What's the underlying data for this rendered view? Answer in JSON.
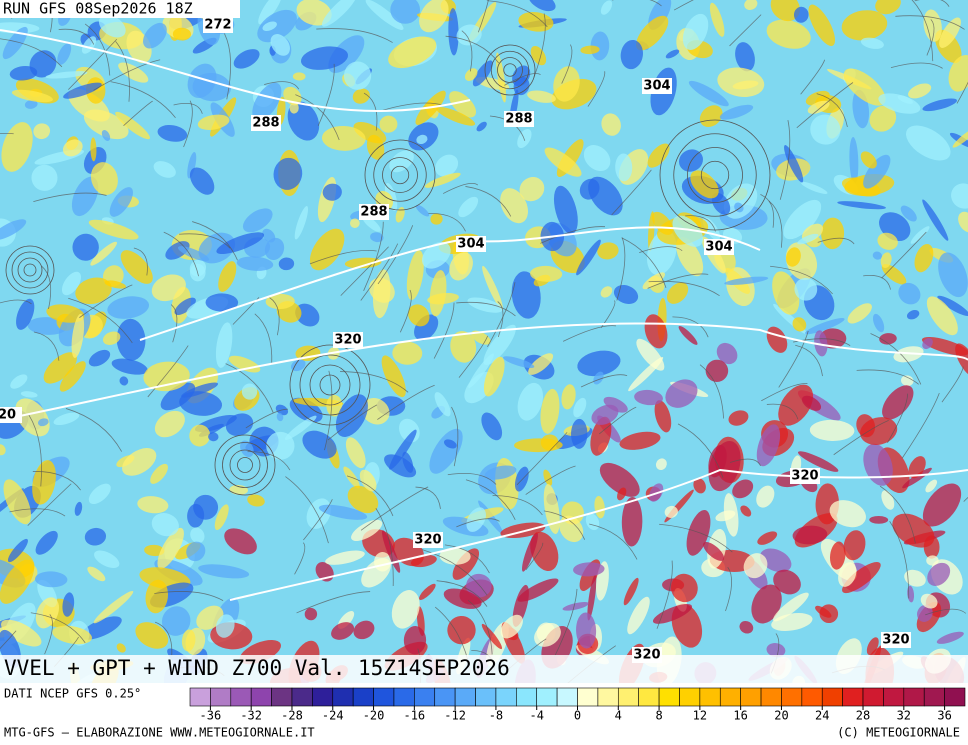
{
  "header": {
    "run": "RUN GFS 08Sep2026 18Z",
    "title": "VVEL + GPT + WIND Z700 Val. 15Z14SEP2026",
    "source": "DATI NCEP GFS 0.25°",
    "credit": "MTG-GFS — ELABORAZIONE WWW.METEOGIORNALE.IT",
    "copyright": "(C) METEOGIORNALE"
  },
  "contour_labels": [
    "272",
    "288",
    "288",
    "288",
    "304",
    "304",
    "304",
    "320",
    "320",
    "320",
    "320",
    "320",
    "20"
  ],
  "colorbar": {
    "ticks": [
      -36,
      -32,
      -28,
      -24,
      -20,
      -16,
      -12,
      -8,
      -4,
      0,
      4,
      8,
      12,
      16,
      20,
      24,
      28,
      32,
      36
    ],
    "colors": [
      "#c9a0dc",
      "#b07cc6",
      "#9b59b6",
      "#8e44ad",
      "#6c3483",
      "#4b2a8a",
      "#2e1f9a",
      "#1f2fb0",
      "#1a40c8",
      "#1f55dd",
      "#2a6ae8",
      "#3a80f0",
      "#4a95f5",
      "#5aaaf8",
      "#6ac0fa",
      "#7ad4fc",
      "#8ae6fd",
      "#a0f0fe",
      "#c8f8ff",
      "#ffffd0",
      "#fff8a0",
      "#fff070",
      "#ffe840",
      "#ffe000",
      "#ffd000",
      "#ffc000",
      "#ffb000",
      "#ffa000",
      "#ff8800",
      "#ff7000",
      "#ff5a00",
      "#f04000",
      "#e02020",
      "#d01a30",
      "#c01840",
      "#b01848",
      "#a01850",
      "#901050"
    ]
  }
}
